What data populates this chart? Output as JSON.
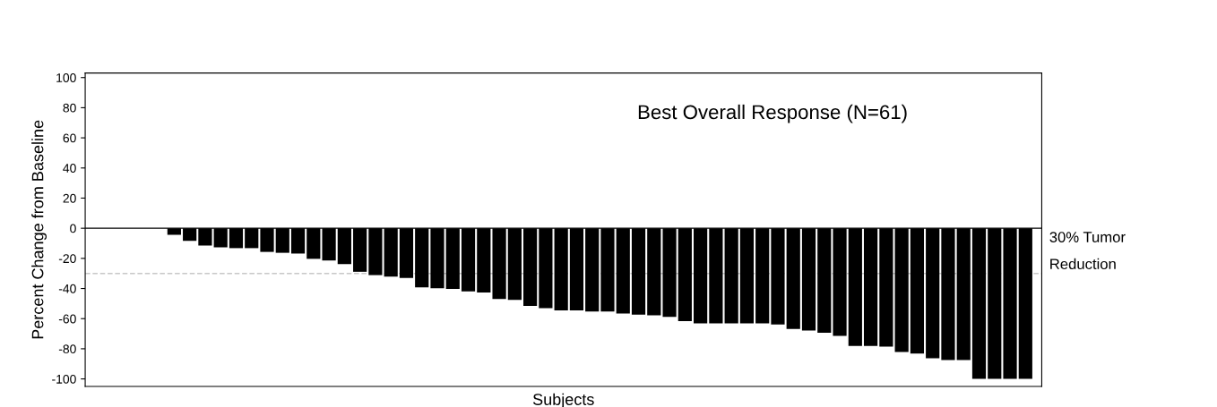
{
  "chart_data": {
    "type": "bar",
    "title": "Best Overall Response (N=61)",
    "xlabel": "Subjects",
    "ylabel": "Percent Change from Baseline",
    "categories": [
      null,
      null,
      null,
      null,
      null,
      null,
      null,
      null,
      null,
      null,
      null,
      null,
      null,
      null,
      null,
      null,
      null,
      null,
      null,
      null,
      null,
      null,
      null,
      null,
      null,
      null,
      null,
      null,
      null,
      null,
      null,
      null,
      null,
      null,
      null,
      null,
      null,
      null,
      null,
      null,
      null,
      null,
      null,
      null,
      null,
      null,
      null,
      null,
      null,
      null,
      null,
      null,
      null,
      null,
      null,
      null,
      null,
      null,
      null,
      null,
      null
    ],
    "values": [
      0,
      0,
      0,
      0,
      0,
      -4.3,
      -8.4,
      -11.5,
      -12.7,
      -13.2,
      -13.2,
      -15.7,
      -16.3,
      -16.8,
      -20.3,
      -21.4,
      -23.8,
      -28.9,
      -31.1,
      -32.1,
      -33.0,
      -39.3,
      -39.8,
      -40.3,
      -41.9,
      -42.7,
      -47.0,
      -47.5,
      -51.5,
      -53.0,
      -54.5,
      -54.5,
      -55.2,
      -55.2,
      -56.6,
      -57.3,
      -57.8,
      -58.8,
      -61.7,
      -63.2,
      -63.2,
      -63.2,
      -63.2,
      -63.2,
      -63.8,
      -66.8,
      -67.9,
      -69.4,
      -71.5,
      -78.1,
      -78.1,
      -78.6,
      -82.2,
      -83.2,
      -86.3,
      -87.4,
      -87.4,
      -100,
      -100,
      -100,
      -100
    ],
    "color": "#000000",
    "ylim": [
      -105,
      103
    ],
    "yticks": [
      -100,
      -80,
      -60,
      -40,
      -20,
      0,
      20,
      40,
      60,
      80,
      100
    ],
    "ref_lines": [
      {
        "axis": "y",
        "value": 0,
        "label": null,
        "color": "#000000",
        "line_style": "solid"
      },
      {
        "axis": "y",
        "value": -30,
        "label": "30% Tumor\nReduction",
        "color": "#c8c8c8",
        "line_style": "dashed"
      }
    ],
    "grid": false,
    "legend": false
  }
}
